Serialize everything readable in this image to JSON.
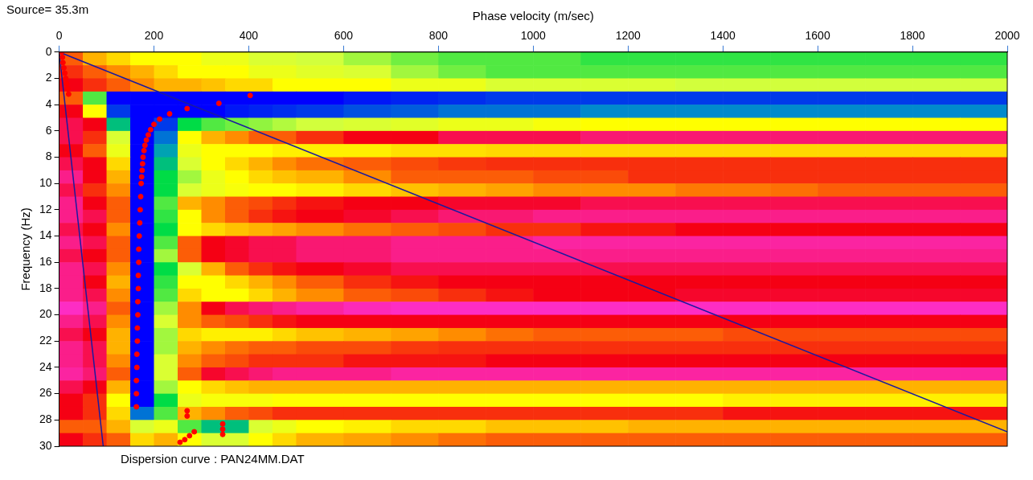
{
  "chart_data": {
    "type": "heatmap",
    "x_label": "Phase velocity (m/sec)",
    "y_label": "Frequency (Hz)",
    "annotations": [
      "Source= 35.3m",
      "Dispersion curve : PAN24MM.DAT"
    ],
    "xlim": [
      0,
      2000
    ],
    "xticks": [
      0,
      200,
      400,
      600,
      800,
      1000,
      1200,
      1400,
      1600,
      1800,
      2000
    ],
    "ylim": [
      0,
      30
    ],
    "yticks": [
      0,
      2,
      4,
      6,
      8,
      10,
      12,
      14,
      16,
      18,
      20,
      22,
      24,
      26,
      28,
      30
    ],
    "grid": false,
    "x_edges": [
      0,
      50,
      100,
      150,
      200,
      250,
      300,
      350,
      400,
      450,
      500,
      600,
      700,
      800,
      900,
      1000,
      1100,
      1200,
      1300,
      1400,
      1500,
      1600,
      1700,
      1800,
      1900,
      2000
    ],
    "y_edges": [
      0,
      1,
      2,
      3,
      4,
      5,
      6,
      7,
      8,
      9,
      10,
      11,
      12,
      13,
      14,
      15,
      16,
      17,
      18,
      19,
      20,
      21,
      22,
      23,
      24,
      25,
      26,
      27,
      28,
      29,
      30
    ],
    "zlim": [
      0,
      1
    ],
    "cells": [
      [
        0.3,
        0.4,
        0.45,
        0.5,
        0.5,
        0.5,
        0.55,
        0.55,
        0.6,
        0.6,
        0.62,
        0.65,
        0.68,
        0.7,
        0.7,
        0.7,
        0.72,
        0.72,
        0.72,
        0.72,
        0.72,
        0.72,
        0.72,
        0.72,
        0.72
      ],
      [
        0.25,
        0.3,
        0.35,
        0.4,
        0.45,
        0.5,
        0.5,
        0.5,
        0.55,
        0.55,
        0.58,
        0.6,
        0.65,
        0.68,
        0.7,
        0.7,
        0.7,
        0.7,
        0.7,
        0.7,
        0.7,
        0.7,
        0.7,
        0.7,
        0.7
      ],
      [
        0.2,
        0.25,
        0.3,
        0.35,
        0.4,
        0.4,
        0.42,
        0.45,
        0.45,
        0.5,
        0.5,
        0.5,
        0.55,
        0.55,
        0.6,
        0.6,
        0.6,
        0.6,
        0.62,
        0.62,
        0.62,
        0.62,
        0.62,
        0.62,
        0.62
      ],
      [
        0.3,
        0.7,
        1,
        1,
        1,
        1,
        1,
        1,
        1,
        1,
        1,
        0.98,
        0.97,
        0.96,
        0.95,
        0.95,
        0.95,
        0.95,
        0.95,
        0.95,
        0.95,
        0.95,
        0.95,
        0.95,
        0.95
      ],
      [
        0.2,
        0.5,
        0.95,
        1,
        1,
        1,
        1,
        0.98,
        0.97,
        0.96,
        0.95,
        0.93,
        0.92,
        0.9,
        0.9,
        0.9,
        0.88,
        0.88,
        0.88,
        0.88,
        0.88,
        0.88,
        0.88,
        0.88,
        0.88
      ],
      [
        0.15,
        0.2,
        0.8,
        1,
        0.95,
        0.75,
        0.7,
        0.68,
        0.66,
        0.64,
        0.62,
        0.6,
        0.58,
        0.55,
        0.55,
        0.52,
        0.5,
        0.5,
        0.5,
        0.5,
        0.5,
        0.5,
        0.5,
        0.5,
        0.5
      ],
      [
        0.15,
        0.25,
        0.6,
        1,
        0.9,
        0.5,
        0.4,
        0.35,
        0.3,
        0.3,
        0.25,
        0.2,
        0.2,
        0.15,
        0.15,
        0.15,
        0.12,
        0.12,
        0.12,
        0.12,
        0.12,
        0.12,
        0.12,
        0.12,
        0.12
      ],
      [
        0.2,
        0.3,
        0.55,
        1,
        0.85,
        0.55,
        0.5,
        0.5,
        0.5,
        0.48,
        0.48,
        0.48,
        0.46,
        0.46,
        0.45,
        0.45,
        0.45,
        0.45,
        0.45,
        0.45,
        0.45,
        0.45,
        0.45,
        0.45,
        0.45
      ],
      [
        0.15,
        0.2,
        0.45,
        1,
        0.8,
        0.6,
        0.5,
        0.45,
        0.4,
        0.35,
        0.32,
        0.3,
        0.28,
        0.26,
        0.25,
        0.25,
        0.25,
        0.25,
        0.25,
        0.25,
        0.25,
        0.25,
        0.25,
        0.25,
        0.25
      ],
      [
        0.1,
        0.2,
        0.4,
        1,
        0.75,
        0.65,
        0.55,
        0.5,
        0.45,
        0.42,
        0.4,
        0.35,
        0.3,
        0.3,
        0.3,
        0.28,
        0.28,
        0.25,
        0.25,
        0.25,
        0.25,
        0.25,
        0.25,
        0.25,
        0.25
      ],
      [
        0.15,
        0.25,
        0.35,
        1,
        0.75,
        0.6,
        0.55,
        0.52,
        0.5,
        0.5,
        0.48,
        0.45,
        0.42,
        0.4,
        0.38,
        0.35,
        0.35,
        0.35,
        0.33,
        0.33,
        0.32,
        0.3,
        0.3,
        0.3,
        0.3
      ],
      [
        0.1,
        0.2,
        0.3,
        1,
        0.7,
        0.4,
        0.35,
        0.3,
        0.28,
        0.25,
        0.22,
        0.2,
        0.2,
        0.18,
        0.18,
        0.18,
        0.15,
        0.15,
        0.15,
        0.15,
        0.15,
        0.15,
        0.15,
        0.15,
        0.15
      ],
      [
        0.1,
        0.15,
        0.3,
        1,
        0.72,
        0.5,
        0.35,
        0.3,
        0.25,
        0.22,
        0.2,
        0.18,
        0.15,
        0.12,
        0.12,
        0.1,
        0.1,
        0.1,
        0.1,
        0.1,
        0.1,
        0.1,
        0.1,
        0.1,
        0.1
      ],
      [
        0.15,
        0.2,
        0.35,
        1,
        0.75,
        0.5,
        0.45,
        0.42,
        0.4,
        0.38,
        0.35,
        0.32,
        0.3,
        0.28,
        0.25,
        0.25,
        0.22,
        0.22,
        0.2,
        0.2,
        0.2,
        0.2,
        0.2,
        0.2,
        0.2
      ],
      [
        0.1,
        0.15,
        0.3,
        1,
        0.7,
        0.3,
        0.2,
        0.18,
        0.15,
        0.15,
        0.12,
        0.12,
        0.1,
        0.1,
        0.1,
        0.08,
        0.08,
        0.08,
        0.08,
        0.08,
        0.08,
        0.08,
        0.08,
        0.08,
        0.08
      ],
      [
        0.15,
        0.2,
        0.3,
        1,
        0.65,
        0.3,
        0.2,
        0.18,
        0.15,
        0.15,
        0.12,
        0.12,
        0.1,
        0.1,
        0.1,
        0.1,
        0.1,
        0.1,
        0.1,
        0.1,
        0.1,
        0.1,
        0.1,
        0.1,
        0.1
      ],
      [
        0.1,
        0.15,
        0.35,
        1,
        0.75,
        0.6,
        0.4,
        0.3,
        0.25,
        0.22,
        0.2,
        0.18,
        0.15,
        0.15,
        0.15,
        0.15,
        0.15,
        0.15,
        0.15,
        0.15,
        0.15,
        0.15,
        0.15,
        0.15,
        0.15
      ],
      [
        0.1,
        0.2,
        0.4,
        1,
        0.72,
        0.5,
        0.5,
        0.45,
        0.4,
        0.35,
        0.3,
        0.25,
        0.22,
        0.2,
        0.2,
        0.2,
        0.2,
        0.2,
        0.2,
        0.2,
        0.2,
        0.2,
        0.2,
        0.2,
        0.2
      ],
      [
        0.1,
        0.15,
        0.35,
        1,
        0.7,
        0.45,
        0.5,
        0.5,
        0.45,
        0.4,
        0.35,
        0.3,
        0.28,
        0.25,
        0.22,
        0.2,
        0.2,
        0.2,
        0.18,
        0.18,
        0.18,
        0.18,
        0.18,
        0.18,
        0.18
      ],
      [
        0.05,
        0.1,
        0.3,
        1,
        0.65,
        0.35,
        0.2,
        0.15,
        0.12,
        0.1,
        0.08,
        0.06,
        0.05,
        0.05,
        0.05,
        0.05,
        0.05,
        0.05,
        0.05,
        0.05,
        0.05,
        0.05,
        0.05,
        0.05,
        0.05
      ],
      [
        0.1,
        0.15,
        0.35,
        1,
        0.6,
        0.35,
        0.3,
        0.28,
        0.25,
        0.22,
        0.2,
        0.2,
        0.2,
        0.2,
        0.2,
        0.2,
        0.2,
        0.2,
        0.2,
        0.2,
        0.2,
        0.2,
        0.2,
        0.2,
        0.2
      ],
      [
        0.15,
        0.2,
        0.4,
        1,
        0.65,
        0.45,
        0.48,
        0.48,
        0.48,
        0.45,
        0.42,
        0.4,
        0.38,
        0.35,
        0.32,
        0.3,
        0.3,
        0.3,
        0.3,
        0.28,
        0.28,
        0.28,
        0.28,
        0.28,
        0.28
      ],
      [
        0.1,
        0.15,
        0.4,
        1,
        0.65,
        0.4,
        0.35,
        0.32,
        0.3,
        0.3,
        0.28,
        0.28,
        0.26,
        0.25,
        0.25,
        0.25,
        0.25,
        0.25,
        0.25,
        0.25,
        0.25,
        0.25,
        0.25,
        0.25,
        0.25
      ],
      [
        0.1,
        0.15,
        0.35,
        1,
        0.6,
        0.35,
        0.3,
        0.28,
        0.25,
        0.25,
        0.25,
        0.22,
        0.22,
        0.22,
        0.2,
        0.2,
        0.2,
        0.2,
        0.2,
        0.2,
        0.2,
        0.2,
        0.2,
        0.2,
        0.2
      ],
      [
        0.08,
        0.12,
        0.3,
        1,
        0.6,
        0.3,
        0.18,
        0.15,
        0.12,
        0.1,
        0.1,
        0.1,
        0.08,
        0.08,
        0.08,
        0.08,
        0.08,
        0.08,
        0.08,
        0.08,
        0.08,
        0.08,
        0.08,
        0.08,
        0.08
      ],
      [
        0.15,
        0.2,
        0.4,
        1,
        0.65,
        0.5,
        0.45,
        0.42,
        0.4,
        0.4,
        0.4,
        0.4,
        0.4,
        0.4,
        0.4,
        0.4,
        0.4,
        0.4,
        0.4,
        0.4,
        0.4,
        0.4,
        0.4,
        0.4,
        0.4
      ],
      [
        0.2,
        0.25,
        0.5,
        1,
        0.75,
        0.55,
        0.52,
        0.52,
        0.52,
        0.5,
        0.5,
        0.5,
        0.5,
        0.5,
        0.5,
        0.5,
        0.5,
        0.5,
        0.5,
        0.48,
        0.48,
        0.48,
        0.48,
        0.48,
        0.48
      ],
      [
        0.2,
        0.25,
        0.45,
        0.9,
        0.7,
        0.4,
        0.35,
        0.3,
        0.28,
        0.25,
        0.25,
        0.25,
        0.25,
        0.25,
        0.25,
        0.25,
        0.25,
        0.25,
        0.25,
        0.22,
        0.22,
        0.22,
        0.22,
        0.22,
        0.22
      ],
      [
        0.3,
        0.3,
        0.4,
        0.6,
        0.55,
        0.7,
        0.8,
        0.8,
        0.6,
        0.55,
        0.5,
        0.48,
        0.45,
        0.45,
        0.42,
        0.42,
        0.42,
        0.4,
        0.4,
        0.4,
        0.4,
        0.4,
        0.4,
        0.4,
        0.4
      ],
      [
        0.2,
        0.25,
        0.3,
        0.45,
        0.4,
        0.5,
        0.6,
        0.6,
        0.5,
        0.45,
        0.4,
        0.38,
        0.35,
        0.32,
        0.3,
        0.3,
        0.3,
        0.3,
        0.3,
        0.3,
        0.3,
        0.3,
        0.3,
        0.3,
        0.3
      ]
    ],
    "series": [
      {
        "type": "scatter",
        "color": "#ff0000",
        "marker": "circle",
        "x": [
          5,
          7,
          8,
          10,
          12,
          14,
          16,
          18,
          20,
          403,
          337,
          270,
          233,
          212,
          200,
          193,
          188,
          184,
          181,
          179,
          177,
          176,
          175,
          174,
          173,
          172,
          171,
          170,
          169,
          168,
          168,
          167,
          167,
          166,
          166,
          165,
          165,
          164,
          164,
          163,
          163,
          163,
          270,
          270,
          285,
          345,
          345,
          345,
          275,
          265,
          255
        ],
        "y": [
          0,
          0.4,
          0.8,
          1.2,
          1.6,
          2.0,
          2.4,
          2.8,
          3.2,
          3.3,
          3.9,
          4.3,
          4.7,
          5.1,
          5.5,
          5.9,
          6.3,
          6.7,
          7.1,
          7.5,
          8,
          8.5,
          9,
          9.5,
          10,
          11,
          12,
          13,
          14,
          15,
          16,
          17,
          18,
          19,
          20,
          21,
          22,
          23,
          24,
          25,
          26,
          27,
          27.3,
          27.7,
          28.9,
          28.3,
          28.7,
          29.1,
          29.2,
          29.5,
          29.7
        ]
      },
      {
        "type": "line",
        "color": "#1a1aa0",
        "line_style": "solid",
        "x": [
          0,
          2000
        ],
        "y": [
          0,
          28.9
        ]
      },
      {
        "type": "line",
        "color": "#1a1aa0",
        "line_style": "solid",
        "x": [
          0,
          93
        ],
        "y": [
          0,
          30
        ]
      }
    ]
  }
}
